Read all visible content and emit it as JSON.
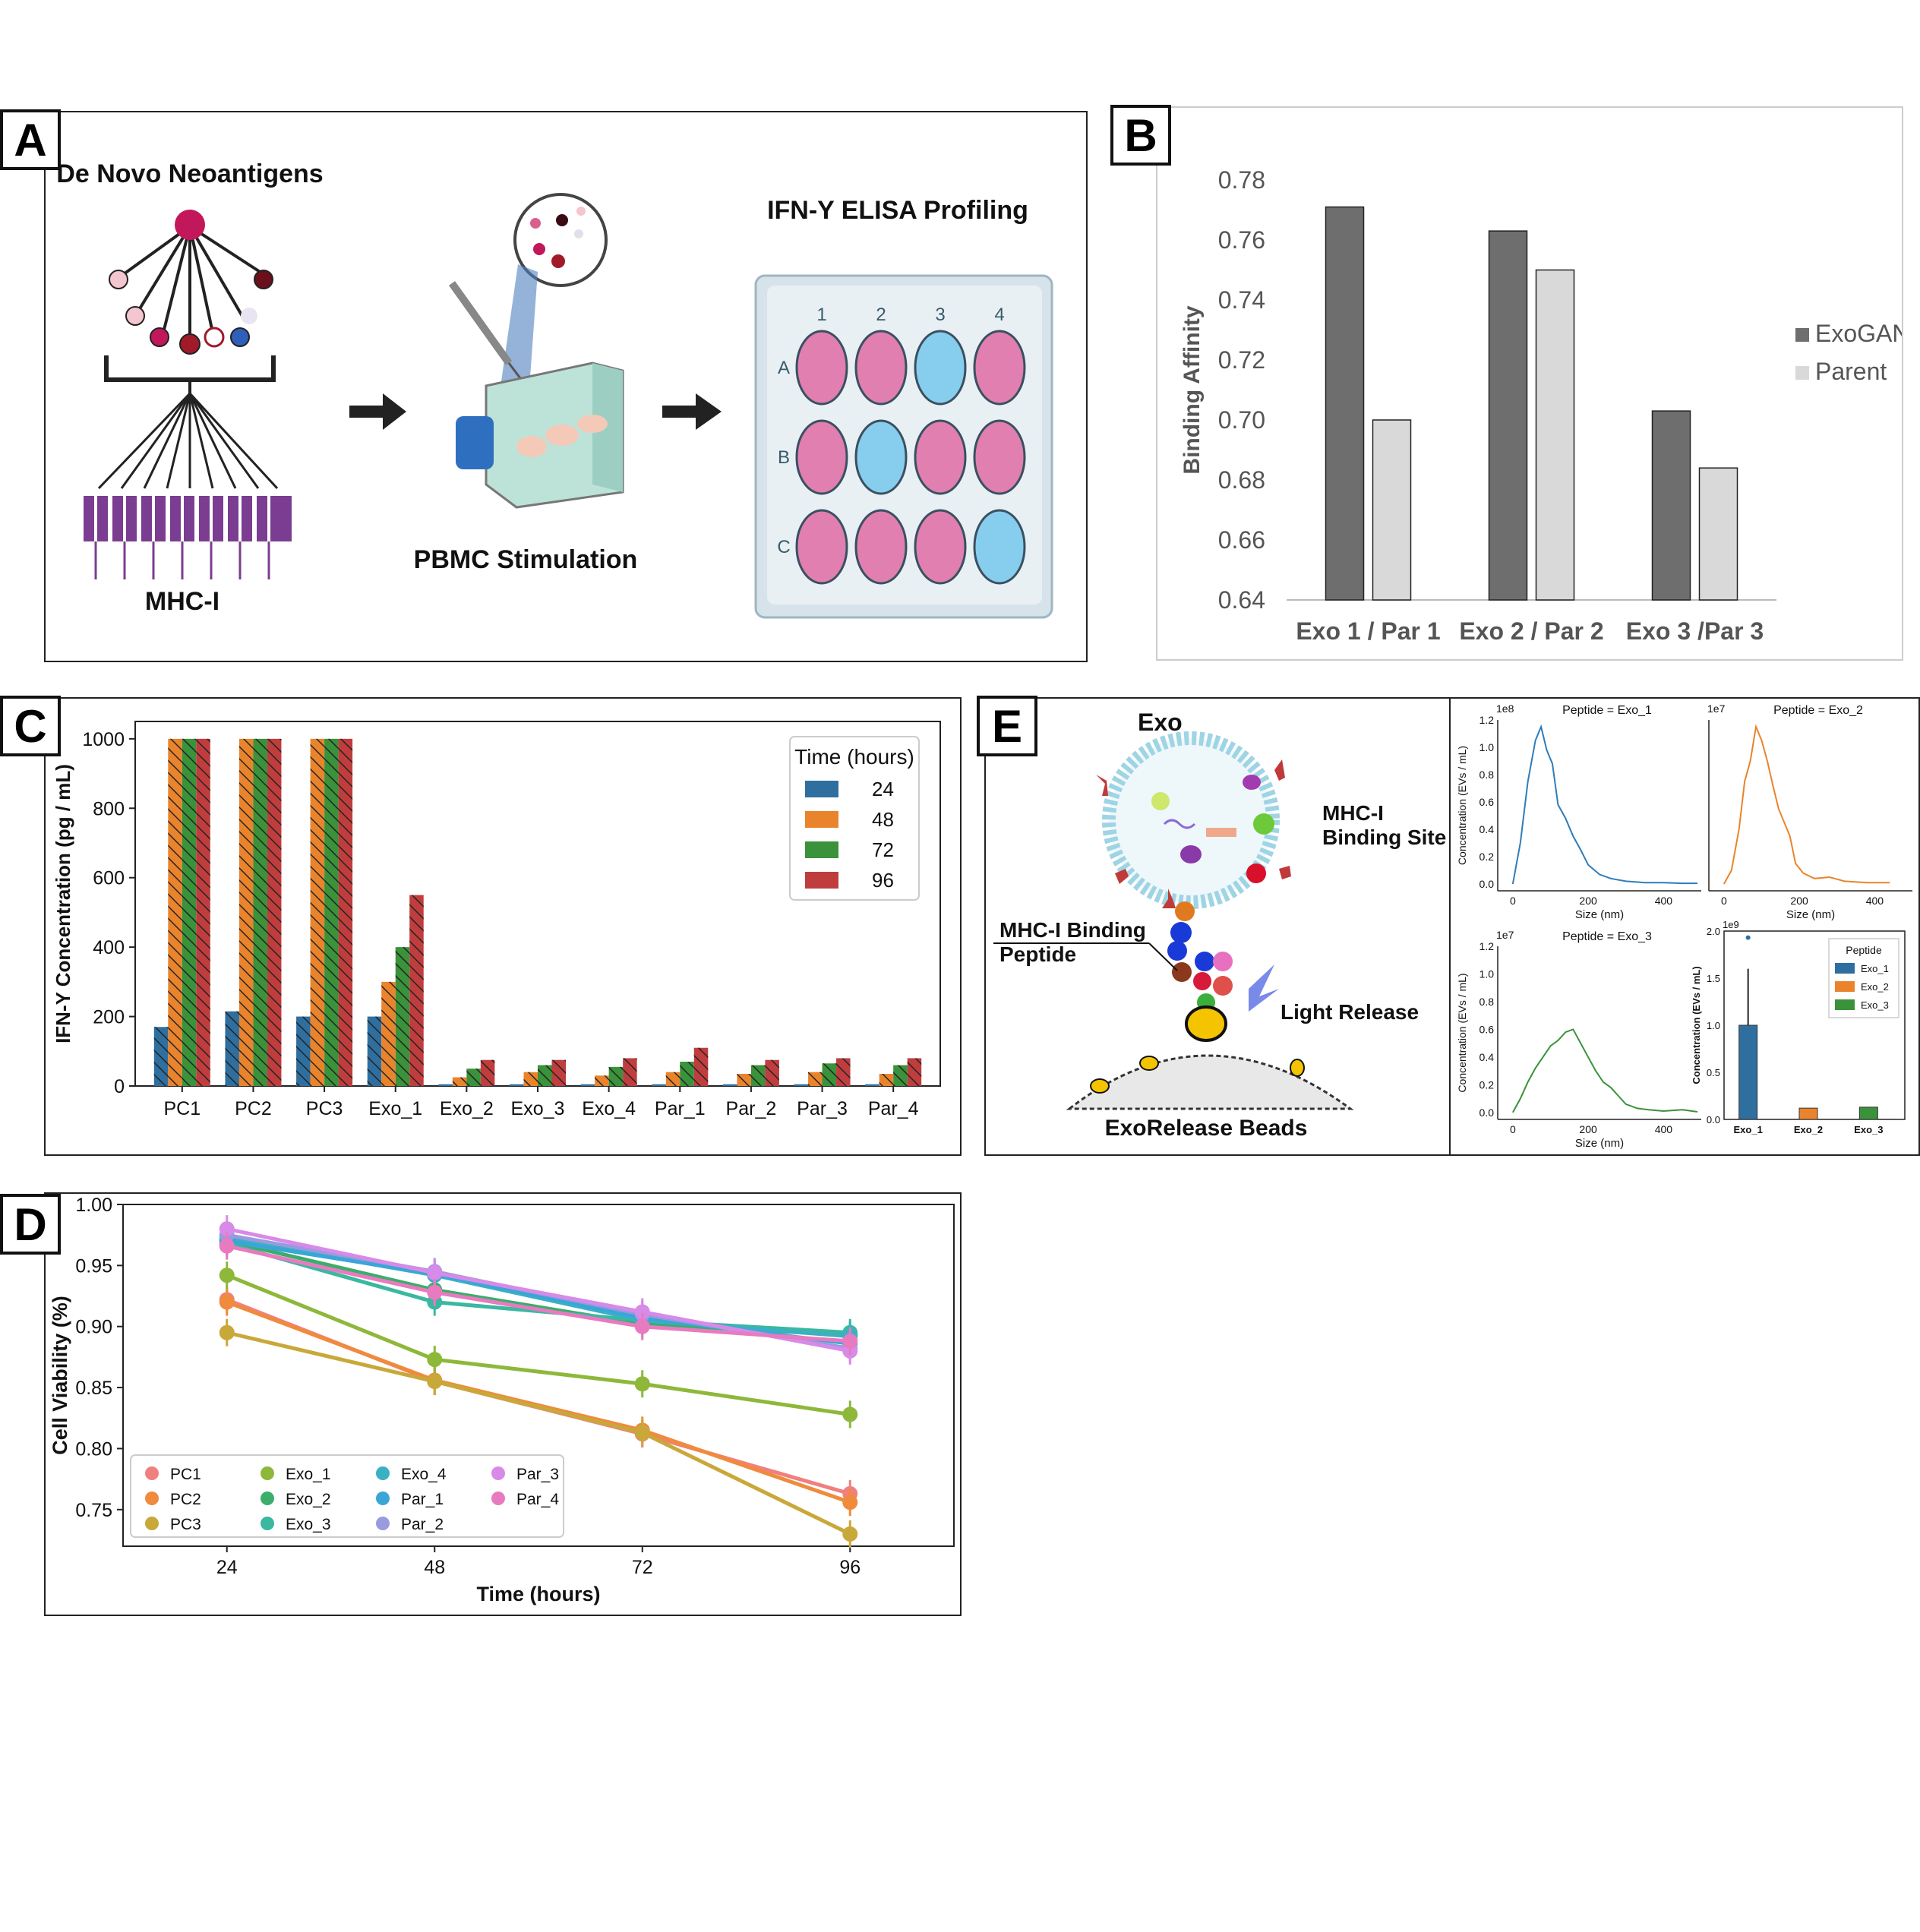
{
  "panel_labels": [
    "A",
    "B",
    "C",
    "D",
    "E"
  ],
  "panelA": {
    "title_left": "De Novo Neoantigens",
    "label_mhc": "MHC-I",
    "label_stim": "PBMC Stimulation",
    "title_right": "IFN-Y ELISA Profiling",
    "plate_cols": [
      "1",
      "2",
      "3",
      "4"
    ],
    "plate_rows": [
      "A",
      "B",
      "C"
    ],
    "plate_wells": [
      [
        "pink",
        "pink",
        "blue",
        "pink"
      ],
      [
        "pink",
        "blue",
        "pink",
        "pink"
      ],
      [
        "pink",
        "pink",
        "pink",
        "blue"
      ]
    ],
    "colors": {
      "pink": "#e07fb0",
      "blue": "#86cdee"
    }
  },
  "panelE": {
    "label_exo": "Exo",
    "label_mhc_site": "MHC-I\nBinding Site",
    "label_peptide": "MHC-I Binding\nPeptide",
    "label_light": "Light Release",
    "label_beads": "ExoRelease Beads"
  },
  "chart_data": [
    {
      "id": "B",
      "type": "bar",
      "categories": [
        "Exo 1 / Par 1",
        "Exo 2 / Par 2",
        "Exo 3 /Par 3"
      ],
      "series": [
        {
          "name": "ExoGAN",
          "values": [
            0.771,
            0.763,
            0.703
          ],
          "color": "#6e6e6e"
        },
        {
          "name": "Parent",
          "values": [
            0.7,
            0.75,
            0.684
          ],
          "color": "#d9d9d9"
        }
      ],
      "ylabel": "Binding Affinity",
      "ylim": [
        0.64,
        0.78
      ],
      "yticks": [
        "0.64",
        "0.66",
        "0.68",
        "0.70",
        "0.72",
        "0.74",
        "0.76",
        "0.78"
      ],
      "legend": "right"
    },
    {
      "id": "C",
      "type": "bar",
      "categories": [
        "PC1",
        "PC2",
        "PC3",
        "Exo_1",
        "Exo_2",
        "Exo_3",
        "Exo_4",
        "Par_1",
        "Par_2",
        "Par_3",
        "Par_4"
      ],
      "series": [
        {
          "name": "24",
          "color": "#2f6f9f",
          "values": [
            170,
            215,
            200,
            200,
            5,
            5,
            5,
            5,
            5,
            5,
            5
          ]
        },
        {
          "name": "48",
          "color": "#e9842c",
          "values": [
            1000,
            1000,
            1000,
            300,
            25,
            40,
            30,
            40,
            35,
            40,
            35
          ]
        },
        {
          "name": "72",
          "color": "#3a923a",
          "values": [
            1000,
            1000,
            1000,
            400,
            50,
            60,
            55,
            70,
            60,
            65,
            60
          ]
        },
        {
          "name": "96",
          "color": "#c03d3e",
          "values": [
            1000,
            1000,
            1000,
            550,
            75,
            75,
            80,
            110,
            75,
            80,
            80
          ]
        }
      ],
      "ylabel": "IFN-Y Concentration (pg / mL)",
      "legend_title": "Time (hours)",
      "ylim": [
        0,
        1050
      ],
      "yticks": [
        "0",
        "200",
        "400",
        "600",
        "800",
        "1000"
      ],
      "legend": "top-right"
    },
    {
      "id": "D",
      "type": "line",
      "x": [
        24,
        48,
        72,
        96
      ],
      "xticks": [
        "24",
        "48",
        "72",
        "96"
      ],
      "xlabel": "Time (hours)",
      "ylabel": "Cell Viability (%)",
      "ylim": [
        0.72,
        1.0
      ],
      "yticks": [
        "0.75",
        "0.80",
        "0.85",
        "0.90",
        "0.95",
        "1.00"
      ],
      "series": [
        {
          "name": "PC1",
          "color": "#f08080",
          "values": [
            0.922,
            0.855,
            0.812,
            0.763
          ]
        },
        {
          "name": "PC2",
          "color": "#f08a3c",
          "values": [
            0.92,
            0.856,
            0.815,
            0.756
          ]
        },
        {
          "name": "PC3",
          "color": "#c9a83a",
          "values": [
            0.895,
            0.855,
            0.813,
            0.73
          ]
        },
        {
          "name": "Exo_1",
          "color": "#8db83a",
          "values": [
            0.942,
            0.873,
            0.853,
            0.828
          ]
        },
        {
          "name": "Exo_2",
          "color": "#3aae6a",
          "values": [
            0.97,
            0.93,
            0.902,
            0.893
          ]
        },
        {
          "name": "Exo_3",
          "color": "#3ab8a0",
          "values": [
            0.968,
            0.92,
            0.905,
            0.895
          ]
        },
        {
          "name": "Exo_4",
          "color": "#3ab0c4",
          "values": [
            0.972,
            0.942,
            0.905,
            0.892
          ]
        },
        {
          "name": "Par_1",
          "color": "#3aa6d8",
          "values": [
            0.97,
            0.943,
            0.907,
            0.886
          ]
        },
        {
          "name": "Par_2",
          "color": "#9a9ae0",
          "values": [
            0.975,
            0.945,
            0.91,
            0.882
          ]
        },
        {
          "name": "Par_3",
          "color": "#d88ae8",
          "values": [
            0.98,
            0.944,
            0.912,
            0.88
          ]
        },
        {
          "name": "Par_4",
          "color": "#e87ac0",
          "values": [
            0.966,
            0.928,
            0.9,
            0.888
          ]
        }
      ],
      "legend": "bottom-left"
    },
    {
      "id": "E1",
      "type": "line",
      "title": "Peptide = Exo_1",
      "multiplier": "1e8",
      "ylabel": "Concentration (EVs / mL)",
      "xlabel": "Size (nm)",
      "xlim": [
        -40,
        500
      ],
      "ylim": [
        -0.05,
        1.2
      ],
      "xticks": [
        "0",
        "200",
        "400"
      ],
      "yticks": [
        "0.0",
        "0.2",
        "0.4",
        "0.6",
        "0.8",
        "1.0",
        "1.2"
      ],
      "color": "#2f7cb8",
      "x": [
        0,
        20,
        40,
        60,
        75,
        90,
        105,
        120,
        140,
        160,
        180,
        200,
        230,
        260,
        300,
        350,
        400,
        450,
        490
      ],
      "values": [
        0.0,
        0.3,
        0.75,
        1.05,
        1.15,
        0.98,
        0.88,
        0.58,
        0.48,
        0.35,
        0.25,
        0.14,
        0.07,
        0.04,
        0.02,
        0.01,
        0.01,
        0.005,
        0.005
      ]
    },
    {
      "id": "E2",
      "type": "line",
      "title": "Peptide = Exo_2",
      "multiplier": "1e7",
      "xlabel": "Size (nm)",
      "xlim": [
        -40,
        500
      ],
      "ylim": [
        -0.05,
        1.2
      ],
      "xticks": [
        "0",
        "200",
        "400"
      ],
      "color": "#e9842c",
      "x": [
        0,
        20,
        40,
        55,
        70,
        85,
        100,
        115,
        130,
        145,
        160,
        175,
        190,
        210,
        240,
        280,
        320,
        380,
        440
      ],
      "values": [
        0.0,
        0.1,
        0.4,
        0.75,
        0.9,
        1.15,
        1.05,
        0.9,
        0.72,
        0.55,
        0.45,
        0.35,
        0.15,
        0.08,
        0.04,
        0.05,
        0.02,
        0.01,
        0.01
      ]
    },
    {
      "id": "E3",
      "type": "line",
      "title": "Peptide = Exo_3",
      "multiplier": "1e7",
      "ylabel": "Concentration (EVs / mL)",
      "xlabel": "Size (nm)",
      "xlim": [
        -40,
        500
      ],
      "ylim": [
        -0.05,
        1.2
      ],
      "xticks": [
        "0",
        "200",
        "400"
      ],
      "yticks": [
        "0.0",
        "0.2",
        "0.4",
        "0.6",
        "0.8",
        "1.0",
        "1.2"
      ],
      "color": "#3a923a",
      "x": [
        0,
        20,
        40,
        60,
        80,
        100,
        120,
        140,
        160,
        180,
        200,
        220,
        240,
        260,
        280,
        300,
        330,
        360,
        400,
        450,
        490
      ],
      "values": [
        0.0,
        0.1,
        0.22,
        0.32,
        0.4,
        0.48,
        0.52,
        0.58,
        0.6,
        0.5,
        0.4,
        0.3,
        0.22,
        0.18,
        0.12,
        0.06,
        0.03,
        0.02,
        0.01,
        0.02,
        0.005
      ]
    },
    {
      "id": "E4",
      "type": "bar",
      "multiplier": "1e9",
      "ylabel": "Concentration (EVs / mL)",
      "legend_title": "Peptide",
      "categories": [
        "Exo_1",
        "Exo_2",
        "Exo_3"
      ],
      "values": [
        1.0,
        0.12,
        0.13
      ],
      "colors": [
        "#2f6f9f",
        "#e9842c",
        "#3a923a"
      ],
      "ylim": [
        0,
        2.0
      ],
      "yticks": [
        "0.0",
        "0.5",
        "1.0",
        "1.5",
        "2.0"
      ],
      "legend": "top-right"
    }
  ]
}
